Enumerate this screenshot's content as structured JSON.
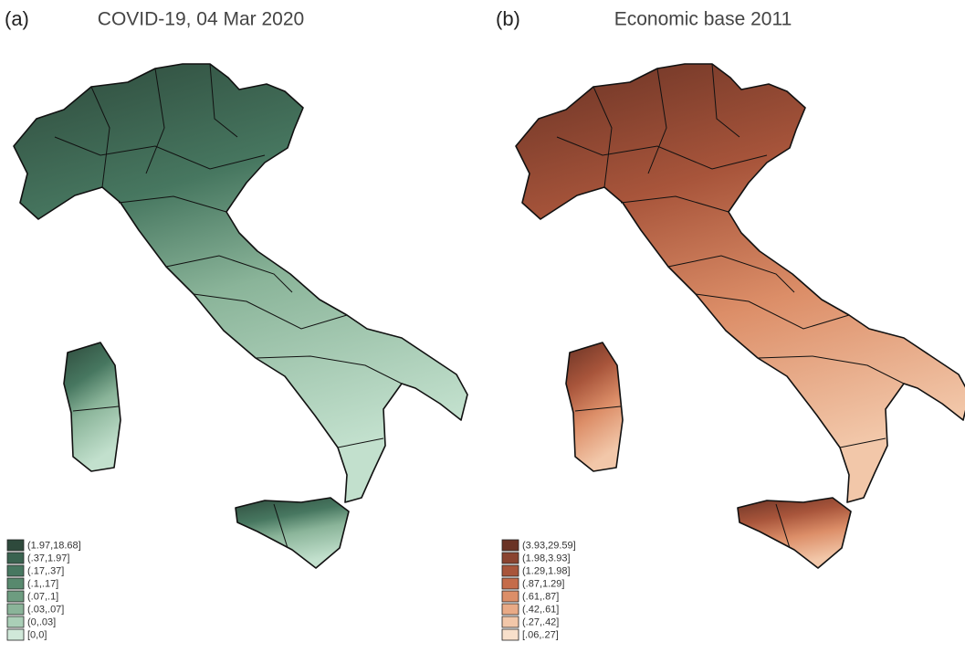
{
  "panels": [
    {
      "label": "(a)",
      "title": "COVID-19, 04 Mar 2020",
      "legend": [
        {
          "label": "(1.97,18.68]",
          "color": "#2e4a3c"
        },
        {
          "label": "(.37,1.97]",
          "color": "#3a6350"
        },
        {
          "label": "(.17,.37]",
          "color": "#477760"
        },
        {
          "label": "(.1,.17]",
          "color": "#58896e"
        },
        {
          "label": "(.07,.1]",
          "color": "#6d9c80"
        },
        {
          "label": "(.03,.07]",
          "color": "#8ab499"
        },
        {
          "label": "(0,.03]",
          "color": "#aacfb7"
        },
        {
          "label": "[0,0]",
          "color": "#d0e8d9"
        }
      ]
    },
    {
      "label": "(b)",
      "title": "Economic base 2011",
      "legend": [
        {
          "label": "(3.93,29.59]",
          "color": "#6a3325"
        },
        {
          "label": "(1.98,3.93]",
          "color": "#8a4330"
        },
        {
          "label": "(1.29,1.98]",
          "color": "#a8553b"
        },
        {
          "label": "(.87,1.29]",
          "color": "#c56c4a"
        },
        {
          "label": "(.61,.87]",
          "color": "#dc8e68"
        },
        {
          "label": "(.42,.61]",
          "color": "#e9aa86"
        },
        {
          "label": "(.27,.42]",
          "color": "#f2c7a9"
        },
        {
          "label": "[.06,.27]",
          "color": "#f8e0cb"
        }
      ]
    }
  ]
}
